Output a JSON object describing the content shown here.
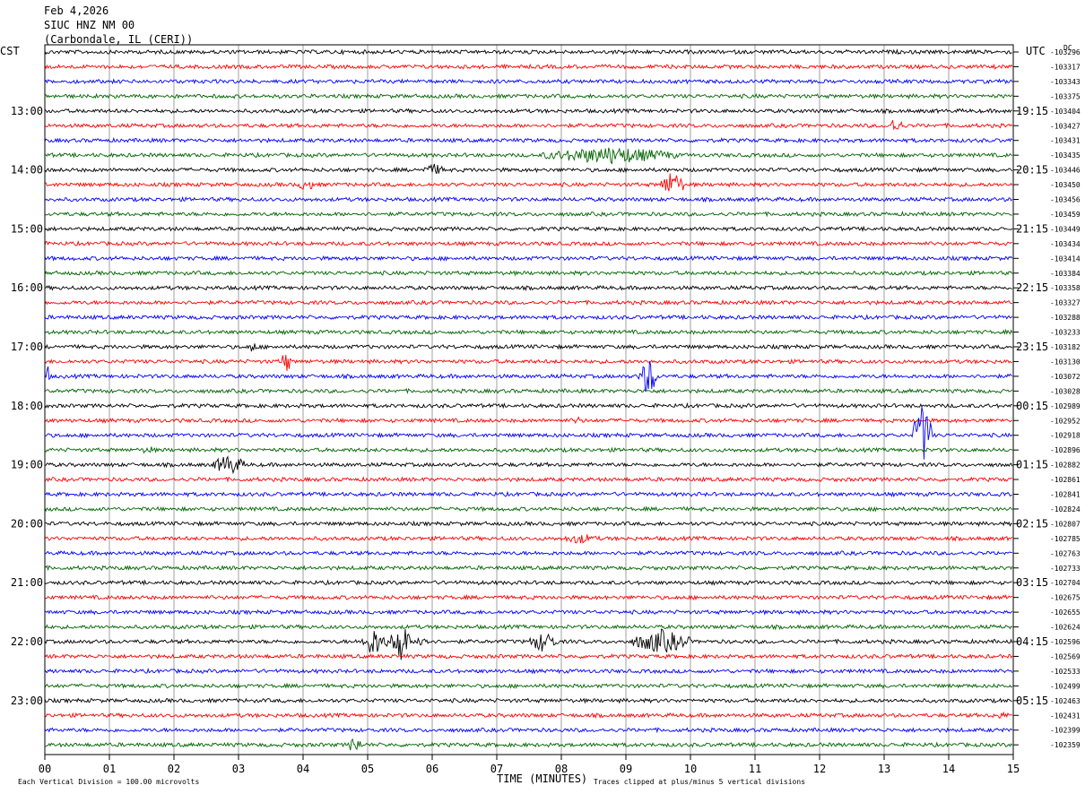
{
  "header": {
    "date": "Feb 4,2026",
    "station": "SIUC HNZ NM 00",
    "location": "(Carbondale, IL (CERI))"
  },
  "left_tz": "CST",
  "right_tz": "UTC",
  "dc_label": "DC",
  "footer": {
    "scale_note": "Each Vertical Division = 100.00 microvolts",
    "clip_note": "Traces clipped at plus/minus 5 vertical divisions"
  },
  "chart_data": {
    "type": "line",
    "title": "",
    "xlabel": "TIME (MINUTES)",
    "xlim": [
      0,
      15
    ],
    "x_ticks": [
      "00",
      "01",
      "02",
      "03",
      "04",
      "05",
      "06",
      "07",
      "08",
      "09",
      "10",
      "11",
      "12",
      "13",
      "14",
      "15"
    ],
    "trace_colors": [
      "#000000",
      "#ff0000",
      "#0000ff",
      "#006400"
    ],
    "traces_per_hour": 4,
    "trace_count": 48,
    "left_hour_labels": [
      "13:00",
      "14:00",
      "15:00",
      "16:00",
      "17:00",
      "18:00",
      "19:00",
      "20:00",
      "21:00",
      "22:00",
      "23:00"
    ],
    "left_hour_label_rows": [
      4,
      8,
      12,
      16,
      20,
      24,
      28,
      32,
      36,
      40,
      44
    ],
    "right_hour_labels": [
      "19:15",
      "20:15",
      "21:15",
      "22:15",
      "23:15",
      "00:15",
      "01:15",
      "02:15",
      "03:15",
      "04:15",
      "05:15"
    ],
    "right_hour_label_rows": [
      4,
      8,
      12,
      16,
      20,
      24,
      28,
      32,
      36,
      40,
      44
    ],
    "dc_offsets": [
      "-103296",
      "-103317",
      "-103343",
      "-103375",
      "-103404",
      "-103427",
      "-103431",
      "-103435",
      "-103446",
      "-103450",
      "-103456",
      "-103459",
      "-103449",
      "-103434",
      "-103414",
      "-103384",
      "-103358",
      "-103327",
      "-103288",
      "-103233",
      "-103182",
      "-103130",
      "-103072",
      "-103028",
      "-102989",
      "-102952",
      "-102918",
      "-102896",
      "-102882",
      "-102861",
      "-102841",
      "-102824",
      "-102807",
      "-102785",
      "-102763",
      "-102733",
      "-102704",
      "-102675",
      "-102655",
      "-102624",
      "-102596",
      "-102569",
      "-102533",
      "-102499",
      "-102463",
      "-102431",
      "-102399",
      "-102359"
    ],
    "events": [
      {
        "trace": 7,
        "start_min": 7.7,
        "end_min": 9.8,
        "amp": 10
      },
      {
        "trace": 9,
        "start_min": 9.55,
        "end_min": 9.9,
        "amp": 16
      },
      {
        "trace": 9,
        "start_min": 3.9,
        "end_min": 4.2,
        "amp": 7
      },
      {
        "trace": 8,
        "start_min": 5.85,
        "end_min": 6.2,
        "amp": 7
      },
      {
        "trace": 5,
        "start_min": 13.05,
        "end_min": 13.3,
        "amp": 9
      },
      {
        "trace": 20,
        "start_min": 3.15,
        "end_min": 3.3,
        "amp": 7
      },
      {
        "trace": 21,
        "start_min": 3.65,
        "end_min": 3.8,
        "amp": 18
      },
      {
        "trace": 22,
        "start_min": 9.2,
        "end_min": 9.5,
        "amp": 22
      },
      {
        "trace": 22,
        "start_min": 0.0,
        "end_min": 0.08,
        "amp": 14
      },
      {
        "trace": 26,
        "start_min": 13.45,
        "end_min": 13.75,
        "amp": 36
      },
      {
        "trace": 25,
        "start_min": 8.15,
        "end_min": 8.35,
        "amp": 5
      },
      {
        "trace": 27,
        "start_min": 1.5,
        "end_min": 1.7,
        "amp": 6
      },
      {
        "trace": 28,
        "start_min": 2.6,
        "end_min": 3.1,
        "amp": 12
      },
      {
        "trace": 33,
        "start_min": 8.0,
        "end_min": 8.6,
        "amp": 6
      },
      {
        "trace": 40,
        "start_min": 4.9,
        "end_min": 5.3,
        "amp": 16
      },
      {
        "trace": 40,
        "start_min": 5.35,
        "end_min": 5.65,
        "amp": 24
      },
      {
        "trace": 40,
        "start_min": 5.75,
        "end_min": 5.95,
        "amp": 10
      },
      {
        "trace": 40,
        "start_min": 7.5,
        "end_min": 7.95,
        "amp": 12
      },
      {
        "trace": 40,
        "start_min": 9.1,
        "end_min": 10.0,
        "amp": 14
      },
      {
        "trace": 45,
        "start_min": 14.6,
        "end_min": 15.0,
        "amp": 4
      },
      {
        "trace": 47,
        "start_min": 4.7,
        "end_min": 4.9,
        "amp": 12
      }
    ]
  }
}
